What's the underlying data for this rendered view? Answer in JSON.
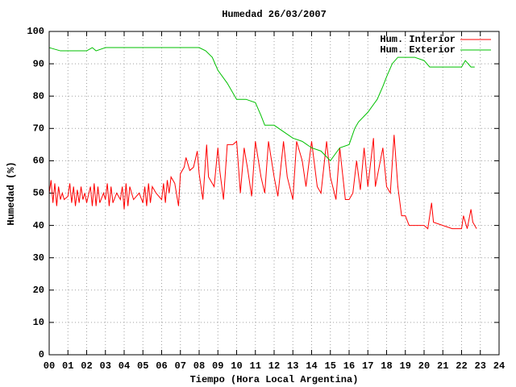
{
  "chart_data": {
    "type": "line",
    "title": "Humedad 26/03/2007",
    "x_label": "Tiempo (Hora Local Argentina)",
    "y_label": "Humedad (%)",
    "xlim": [
      0,
      24
    ],
    "ylim": [
      0,
      100
    ],
    "xticks": [
      {
        "value": 0,
        "label": "00"
      },
      {
        "value": 1,
        "label": "01"
      },
      {
        "value": 2,
        "label": "02"
      },
      {
        "value": 3,
        "label": "03"
      },
      {
        "value": 4,
        "label": "04"
      },
      {
        "value": 5,
        "label": "05"
      },
      {
        "value": 6,
        "label": "06"
      },
      {
        "value": 7,
        "label": "07"
      },
      {
        "value": 8,
        "label": "08"
      },
      {
        "value": 9,
        "label": "09"
      },
      10,
      11,
      12,
      13,
      14,
      15,
      16,
      17,
      18,
      19,
      20,
      21,
      22,
      23,
      24
    ],
    "yticks": [
      0,
      10,
      20,
      30,
      40,
      50,
      60,
      70,
      80,
      90,
      100
    ],
    "grid": true,
    "legend": "top-right",
    "series": [
      {
        "name": "Hum. Interior",
        "color": "#ff0000",
        "x": [
          0,
          0.1,
          0.2,
          0.3,
          0.4,
          0.5,
          0.6,
          0.7,
          0.8,
          1.0,
          1.1,
          1.2,
          1.3,
          1.4,
          1.5,
          1.6,
          1.7,
          1.8,
          1.9,
          2.0,
          2.2,
          2.3,
          2.4,
          2.5,
          2.6,
          2.7,
          2.9,
          3.0,
          3.1,
          3.2,
          3.3,
          3.4,
          3.6,
          3.8,
          3.9,
          4.0,
          4.1,
          4.2,
          4.3,
          4.5,
          4.8,
          5.0,
          5.1,
          5.2,
          5.3,
          5.4,
          5.5,
          5.7,
          6.0,
          6.1,
          6.2,
          6.3,
          6.4,
          6.5,
          6.7,
          6.9,
          7.0,
          7.2,
          7.3,
          7.5,
          7.7,
          7.9,
          8.0,
          8.2,
          8.4,
          8.5,
          8.8,
          9.0,
          9.1,
          9.3,
          9.5,
          9.8,
          10.0,
          10.2,
          10.4,
          10.6,
          10.8,
          11.0,
          11.3,
          11.5,
          11.7,
          12.0,
          12.2,
          12.5,
          12.7,
          13.0,
          13.2,
          13.5,
          13.7,
          14.0,
          14.3,
          14.5,
          14.8,
          15.0,
          15.3,
          15.5,
          15.8,
          16.0,
          16.2,
          16.4,
          16.6,
          16.8,
          17.0,
          17.3,
          17.4,
          17.6,
          17.8,
          18.0,
          18.2,
          18.4,
          18.6,
          18.8,
          19.0,
          19.2,
          19.5,
          20.0,
          20.2,
          20.4,
          20.5,
          21.0,
          21.5,
          22.0,
          22.1,
          22.3,
          22.5,
          22.6,
          22.8
        ],
        "values": [
          50,
          54,
          47,
          53,
          46,
          52,
          48,
          50,
          48,
          49,
          53,
          47,
          52,
          46,
          51,
          47,
          52,
          48,
          50,
          47,
          52,
          46,
          53,
          46,
          52,
          47,
          50,
          48,
          53,
          46,
          52,
          47,
          50,
          48,
          52,
          45,
          53,
          46,
          52,
          48,
          50,
          47,
          52,
          46,
          53,
          47,
          52,
          50,
          48,
          53,
          47,
          54,
          50,
          55,
          53,
          46,
          56,
          58,
          61,
          57,
          58,
          63,
          56,
          48,
          65,
          55,
          52,
          64,
          57,
          48,
          65,
          65,
          66,
          50,
          64,
          57,
          49,
          66,
          55,
          50,
          66,
          55,
          49,
          66,
          55,
          48,
          66,
          60,
          52,
          66,
          52,
          50,
          66,
          55,
          48,
          64,
          48,
          48,
          50,
          60,
          51,
          64,
          52,
          67,
          52,
          58,
          64,
          52,
          50,
          68,
          52,
          43,
          43,
          40,
          40,
          40,
          39,
          47,
          41,
          40,
          39,
          39,
          43,
          39,
          45,
          41,
          39
        ]
      },
      {
        "name": "Hum. Exterior",
        "color": "#00c000",
        "x": [
          0,
          0.6,
          1.0,
          2.0,
          2.3,
          2.5,
          3.0,
          4.0,
          5.0,
          6.0,
          7.0,
          7.5,
          8.0,
          8.35,
          8.7,
          9.0,
          9.5,
          9.8,
          10.0,
          10.5,
          11.0,
          11.3,
          11.5,
          12.0,
          12.5,
          13.0,
          13.5,
          14.0,
          14.5,
          15.0,
          15.5,
          16.0,
          16.3,
          16.5,
          17.0,
          17.5,
          17.8,
          18.0,
          18.3,
          18.6,
          19.0,
          19.5,
          20.0,
          20.3,
          21.0,
          22.0,
          22.2,
          22.5,
          22.7
        ],
        "values": [
          95,
          94,
          94,
          94,
          95,
          94,
          95,
          95,
          95,
          95,
          95,
          95,
          95,
          94,
          92,
          88,
          84,
          81,
          79,
          79,
          78,
          74,
          71,
          71,
          69,
          67,
          66,
          64,
          63,
          60,
          64,
          65,
          70,
          72,
          75,
          79,
          83,
          86,
          90,
          92,
          92,
          92,
          91,
          89,
          89,
          89,
          91,
          89,
          89
        ]
      }
    ]
  }
}
